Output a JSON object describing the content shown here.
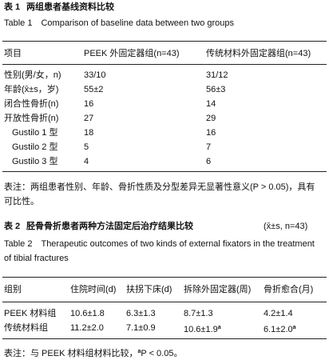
{
  "table1": {
    "label": "表 1",
    "title": "两组患者基线资料比较",
    "title_en": "Table 1　Comparison of baseline data between two groups",
    "header": [
      "项目",
      "PEEK 外固定器组(n=43)",
      "传统材料外固定器组(n=43)"
    ],
    "rows": [
      [
        "性别(男/女，n)",
        "33/10",
        "31/12"
      ],
      [
        "年龄(x̄±s，岁)",
        "55±2",
        "56±3"
      ],
      [
        "闭合性骨折(n)",
        "16",
        "14"
      ],
      [
        "开放性骨折(n)",
        "27",
        "29"
      ],
      [
        "Gustilo 1 型",
        "18",
        "16"
      ],
      [
        "Gustilo 2 型",
        "5",
        "7"
      ],
      [
        "Gustilo 3 型",
        "4",
        "6"
      ]
    ],
    "note": "表注：两组患者性别、年龄、骨折性质及分型差异无显著性意义(P > 0.05)，具有可比性。"
  },
  "table2": {
    "label": "表 2",
    "title": "胫骨骨折患者两种方法固定后治疗结果比较",
    "stat": "(x̄±s, n=43)",
    "title_en": "Table 2　Therapeutic outcomes of two kinds of external fixators in the treatment of tibial fractures",
    "header": [
      "组别",
      "住院时间(d)",
      "扶拐下床(d)",
      "拆除外固定器(周)",
      "骨折愈合(月)"
    ],
    "rows": [
      [
        "PEEK 材料组",
        "10.6±1.8",
        "6.3±1.3",
        "8.7±1.3",
        "4.2±1.4"
      ],
      [
        "传统材料组",
        "11.2±2.0",
        "7.1±0.9",
        {
          "text": "10.6±1.9",
          "sup": "a"
        },
        {
          "text": "6.1±2.0",
          "sup": "a"
        }
      ]
    ],
    "note": [
      "表注：与 PEEK 材料组材料比较，",
      "a",
      "P < 0.05。"
    ]
  }
}
